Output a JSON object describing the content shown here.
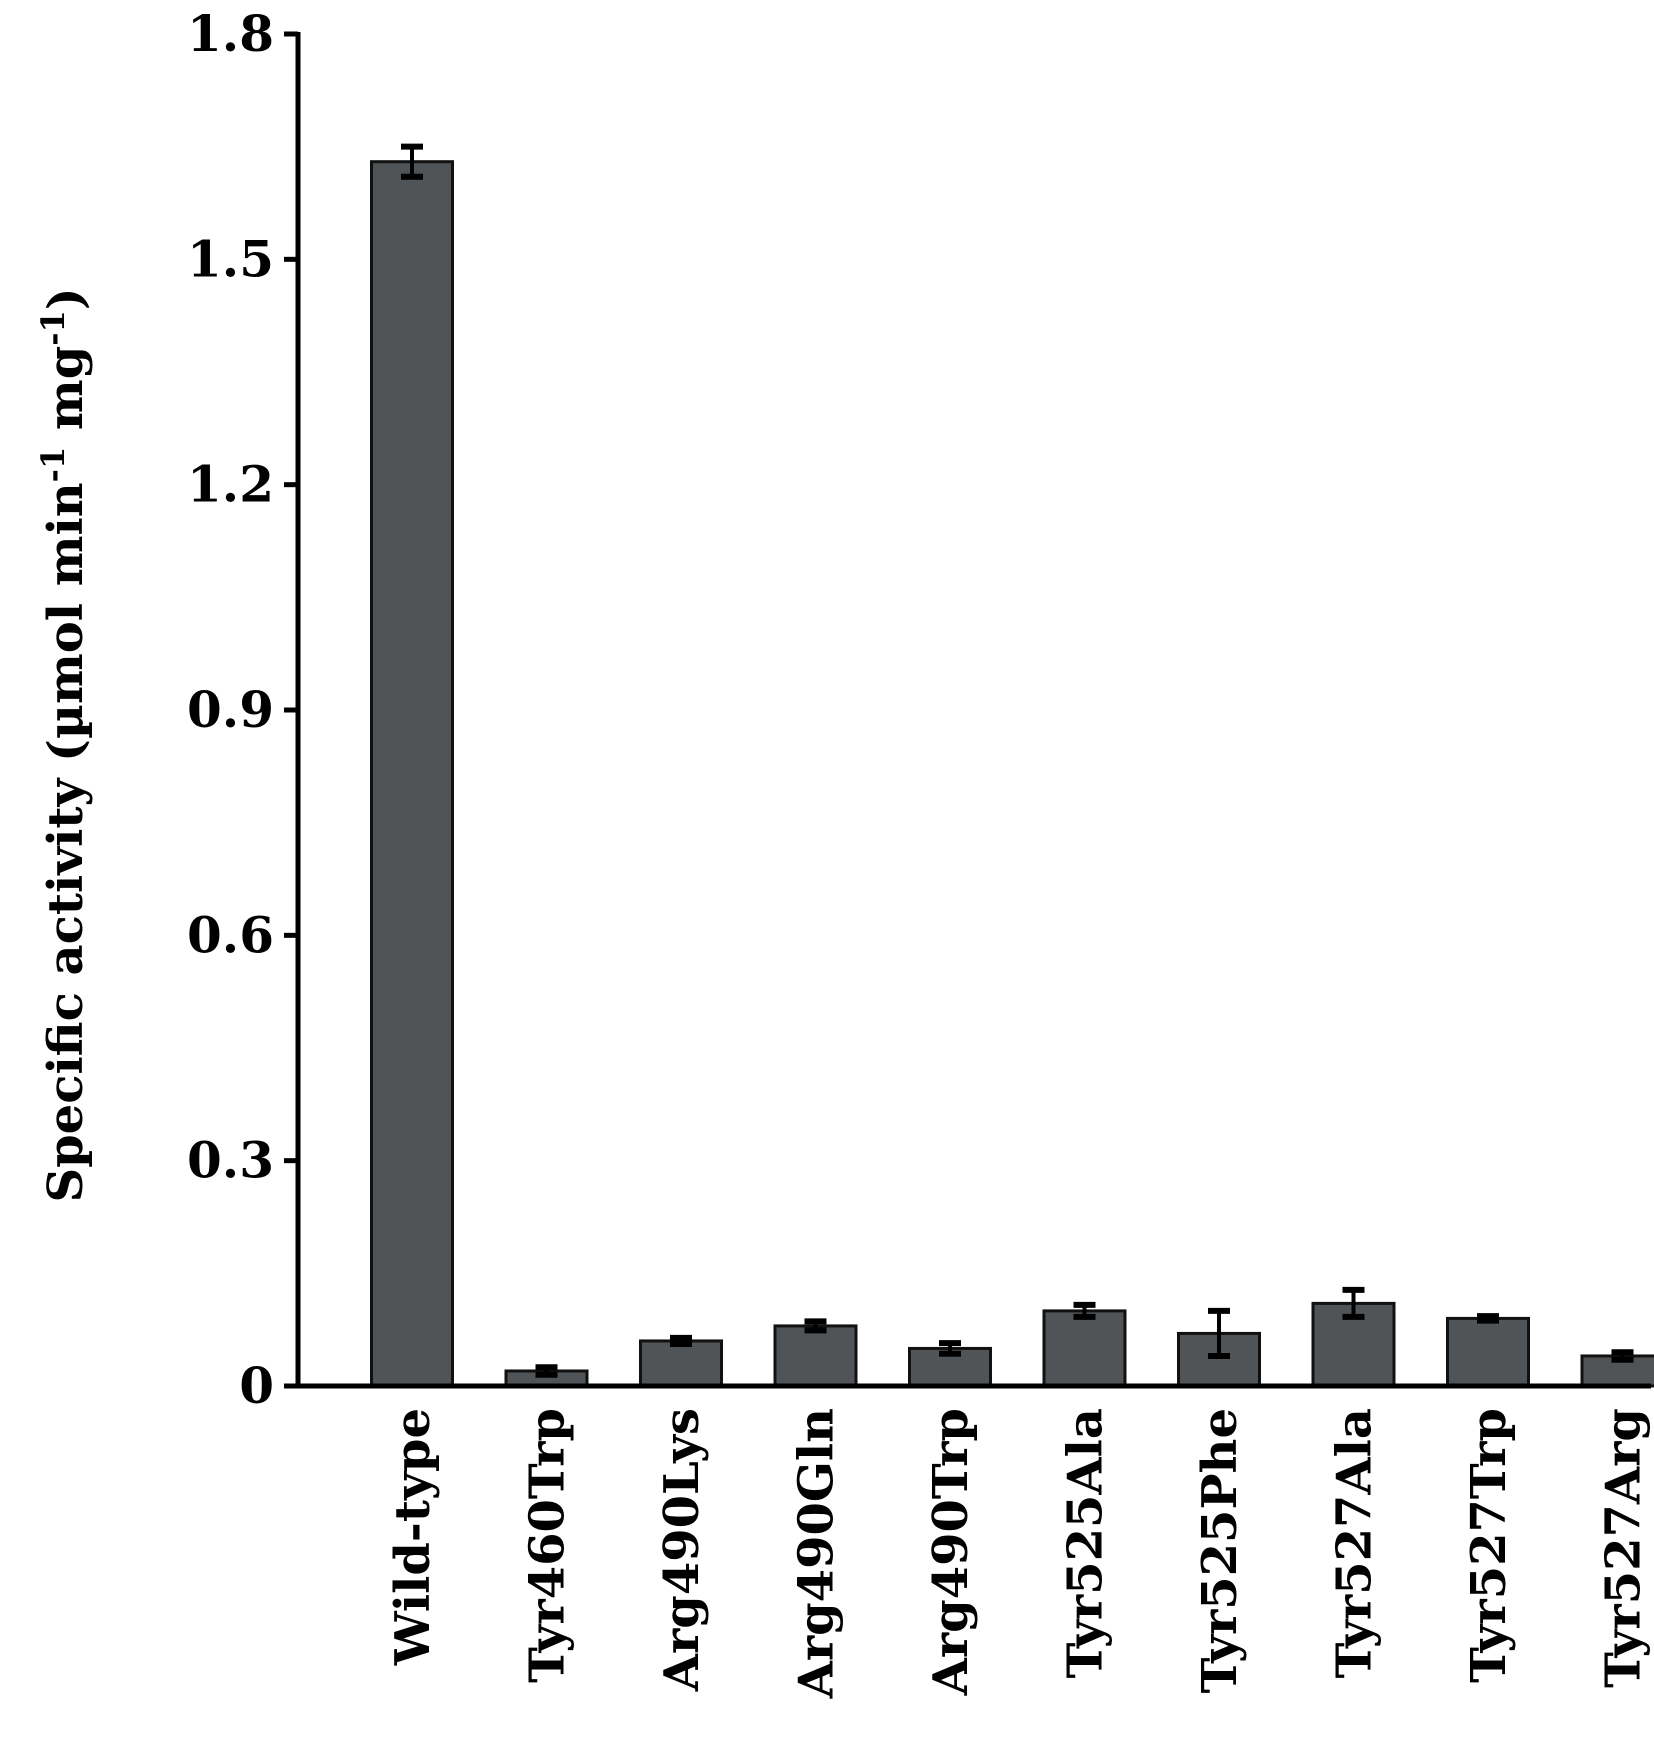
{
  "chart_data": {
    "type": "bar",
    "categories": [
      "Wild-type",
      "Tyr460Trp",
      "Arg490Lys",
      "Arg490Gln",
      "Arg490Trp",
      "Tyr525Ala",
      "Tyr525Phe",
      "Tyr527Ala",
      "Tyr527Trp",
      "Tyr527Arg"
    ],
    "values": [
      1.63,
      0.02,
      0.06,
      0.08,
      0.05,
      0.1,
      0.07,
      0.11,
      0.09,
      0.04
    ],
    "errors": [
      0.02,
      0.005,
      0.004,
      0.006,
      0.007,
      0.008,
      0.03,
      0.018,
      0.003,
      0.005
    ],
    "title": "",
    "xlabel": "",
    "ylabel": "Specific activity (µmol min",
    "ylabel_sup1": "-1",
    "ylabel_mid": " mg",
    "ylabel_sup2": "-1",
    "ylabel_end": ")",
    "ylim": [
      0,
      1.8
    ],
    "yticks": [
      0,
      0.3,
      0.6,
      0.9,
      1.2,
      1.5,
      1.8
    ],
    "ytick_labels": [
      "0",
      "0.3",
      "0.6",
      "0.9",
      "1.2",
      "1.5",
      "1.8"
    ],
    "grid": false,
    "bar_color": "#515456",
    "axis_color": "#000000"
  }
}
